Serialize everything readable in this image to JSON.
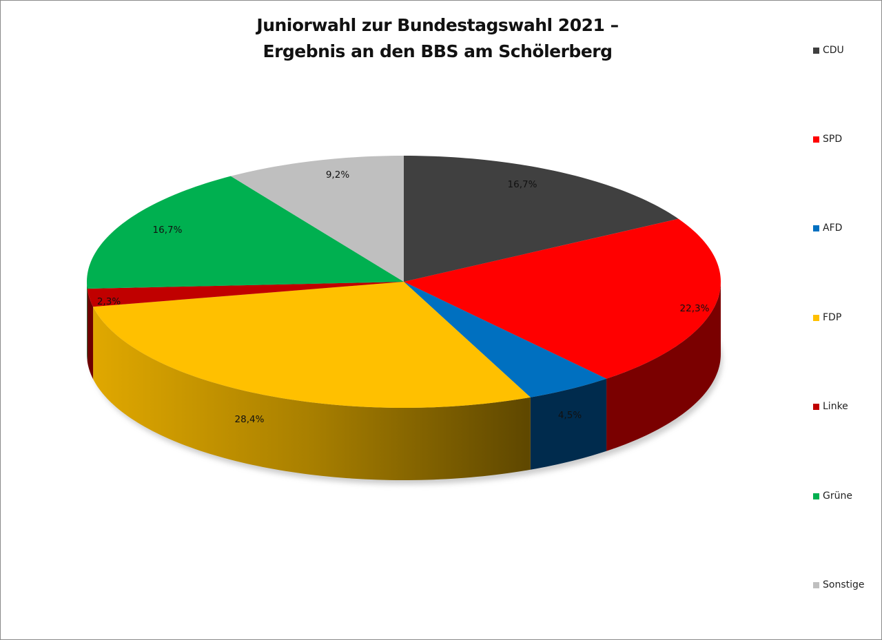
{
  "chart_data": {
    "type": "pie",
    "title": "Juniorwahl zur Bundestagswahl 2021 – Ergebnis an den BBS am Schölerberg",
    "title_lines": [
      "Juniorwahl zur Bundestagswahl 2021 –",
      "Ergebnis an den BBS am Schölerberg"
    ],
    "style": "3d",
    "legend_position": "right",
    "categories": [
      "CDU",
      "SPD",
      "AFD",
      "FDP",
      "Linke",
      "Grüne",
      "Sonstige"
    ],
    "values": [
      16.7,
      22.3,
      4.5,
      28.4,
      2.3,
      16.7,
      9.2
    ],
    "labels": [
      "16,7%",
      "22,3%",
      "4,5%",
      "28,4%",
      "2,3%",
      "16,7%",
      "9,2%"
    ],
    "colors": [
      "#404040",
      "#ff0000",
      "#0070c0",
      "#ffc000",
      "#c00000",
      "#00b050",
      "#bfbfbf"
    ],
    "side_colors": [
      "#262626",
      "#7a0000",
      "#002b4d",
      "#b08600",
      "#6e0000",
      "#006b30",
      "#8a8a8a"
    ],
    "unit": "%"
  },
  "legend": {
    "items": [
      {
        "label": "CDU",
        "color": "#404040"
      },
      {
        "label": "SPD",
        "color": "#ff0000"
      },
      {
        "label": "AFD",
        "color": "#0070c0"
      },
      {
        "label": "FDP",
        "color": "#ffc000"
      },
      {
        "label": "Linke",
        "color": "#c00000"
      },
      {
        "label": "Grüne",
        "color": "#00b050"
      },
      {
        "label": "Sonstige",
        "color": "#bfbfbf"
      }
    ]
  }
}
